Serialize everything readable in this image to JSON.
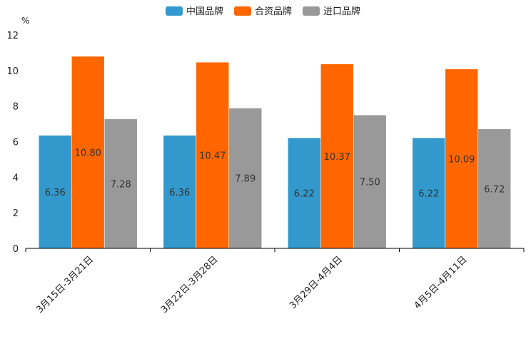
{
  "chart_data": {
    "type": "bar",
    "title": "",
    "ylabel": "%",
    "xlabel": "",
    "ylim": [
      0,
      12
    ],
    "yticks": [
      0,
      2,
      4,
      6,
      8,
      10,
      12
    ],
    "legend_position": "top-center",
    "grid": false,
    "categories": [
      "3月15日-3月21日",
      "3月22日-3月28日",
      "3月29日-4月4日",
      "4月5日-4月11日"
    ],
    "series": [
      {
        "name": "中国品牌",
        "color": "#3399cc",
        "values": [
          6.36,
          6.36,
          6.22,
          6.22
        ],
        "labels": [
          "6.36",
          "6.36",
          "6.22",
          "6.22"
        ]
      },
      {
        "name": "合资品牌",
        "color": "#ff6600",
        "values": [
          10.8,
          10.47,
          10.37,
          10.09
        ],
        "labels": [
          "10.80",
          "10.47",
          "10.37",
          "10.09"
        ]
      },
      {
        "name": "进口品牌",
        "color": "#999999",
        "values": [
          7.28,
          7.89,
          7.5,
          6.72
        ],
        "labels": [
          "7.28",
          "7.89",
          "7.50",
          "6.72"
        ]
      }
    ]
  }
}
